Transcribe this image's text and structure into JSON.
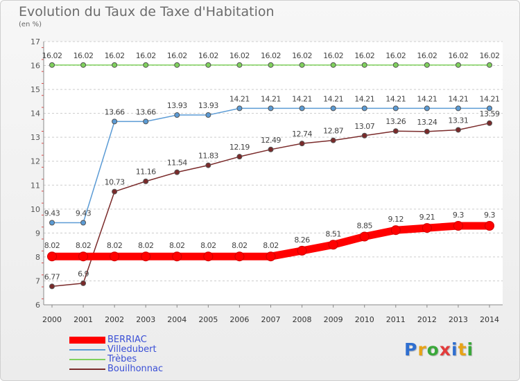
{
  "chart_data": {
    "type": "line",
    "title": "Evolution du Taux de Taxe d'Habitation",
    "subtitle": "(en %)",
    "x": [
      "2000",
      "2001",
      "2002",
      "2003",
      "2004",
      "2005",
      "2006",
      "2007",
      "2008",
      "2009",
      "2010",
      "2011",
      "2012",
      "2013",
      "2014"
    ],
    "ylim": [
      6,
      17
    ],
    "y_ticks": [
      6,
      7,
      8,
      9,
      10,
      11,
      12,
      13,
      14,
      15,
      16,
      17
    ],
    "grid": "horizontal dashed",
    "legend_position": "bottom-left",
    "series": [
      {
        "name": "BERRIAC",
        "color": "#ff0000",
        "values": [
          8.02,
          8.02,
          8.02,
          8.02,
          8.02,
          8.02,
          8.02,
          8.02,
          8.26,
          8.51,
          8.85,
          9.12,
          9.21,
          9.3,
          9.3
        ],
        "labels": [
          "8.02",
          "8.02",
          "8.02",
          "8.02",
          "8.02",
          "8.02",
          "8.02",
          "8.02",
          "8.26",
          "8.51",
          "8.85",
          "9.12",
          "9.21",
          "9.3",
          "9.3"
        ]
      },
      {
        "name": "Villedubert",
        "color": "#5b9bd5",
        "values": [
          9.43,
          9.43,
          13.66,
          13.66,
          13.93,
          13.93,
          14.21,
          14.21,
          14.21,
          14.21,
          14.21,
          14.21,
          14.21,
          14.21,
          14.21
        ],
        "labels": [
          "9.43",
          "9.43",
          "13.66",
          "13.66",
          "13.93",
          "13.93",
          "14.21",
          "14.21",
          "14.21",
          "14.21",
          "14.21",
          "14.21",
          "14.21",
          "14.21",
          "14.21"
        ]
      },
      {
        "name": "Trèbes",
        "color": "#7fd15c",
        "values": [
          16.02,
          16.02,
          16.02,
          16.02,
          16.02,
          16.02,
          16.02,
          16.02,
          16.02,
          16.02,
          16.02,
          16.02,
          16.02,
          16.02,
          16.02
        ],
        "labels": [
          "16.02",
          "16.02",
          "16.02",
          "16.02",
          "16.02",
          "16.02",
          "16.02",
          "16.02",
          "16.02",
          "16.02",
          "16.02",
          "16.02",
          "16.02",
          "16.02",
          "16.02"
        ]
      },
      {
        "name": "Bouilhonnac",
        "color": "#7a2a2a",
        "values": [
          6.77,
          6.9,
          10.73,
          11.16,
          11.54,
          11.83,
          12.19,
          12.49,
          12.74,
          12.87,
          13.07,
          13.26,
          13.24,
          13.31,
          13.59
        ],
        "labels": [
          "6.77",
          "6.9",
          "10.73",
          "11.16",
          "11.54",
          "11.83",
          "12.19",
          "12.49",
          "12.74",
          "12.87",
          "13.07",
          "13.26",
          "13.24",
          "13.31",
          "13.59"
        ]
      }
    ]
  },
  "brand": {
    "letters": [
      "P",
      "r",
      "o",
      "x",
      "i",
      "t",
      "i"
    ],
    "colors": [
      "#2f6fd0",
      "#e8a317",
      "#3aa83a",
      "#e23b3b",
      "#2f6fd0",
      "#e8a317",
      "#3aa83a"
    ]
  }
}
